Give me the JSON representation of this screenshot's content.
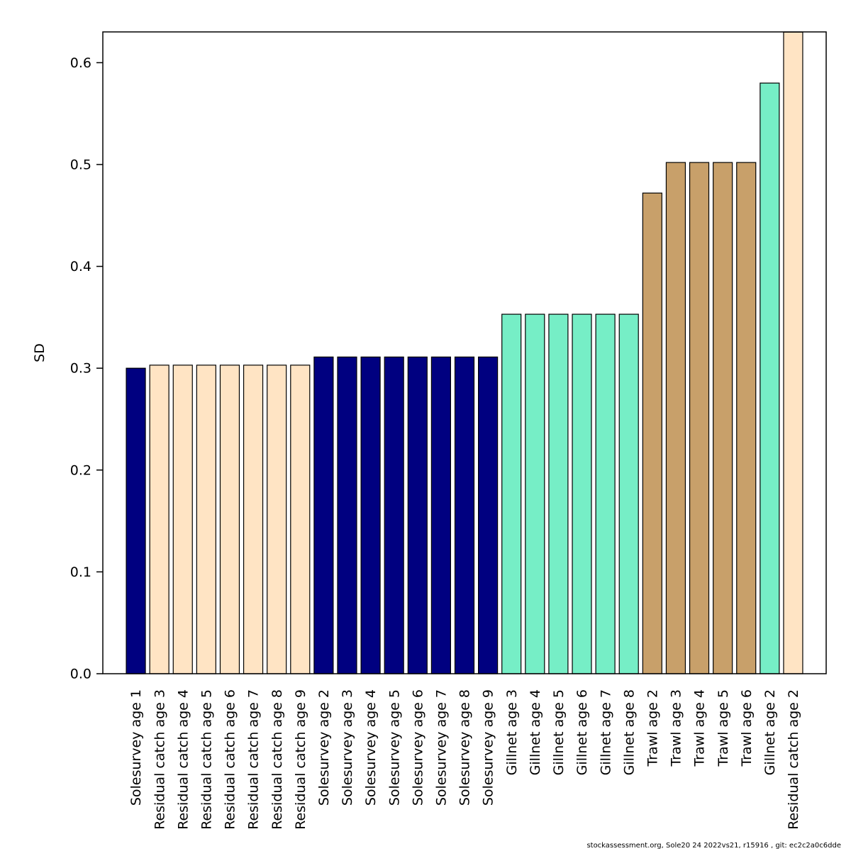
{
  "chart_data": {
    "type": "bar",
    "title": "",
    "xlabel": "",
    "ylabel": "SD",
    "ylim": [
      0,
      0.63
    ],
    "yticks": [
      0.0,
      0.1,
      0.2,
      0.3,
      0.4,
      0.5,
      0.6
    ],
    "ytick_labels": [
      "0.0",
      "0.1",
      "0.2",
      "0.3",
      "0.4",
      "0.5",
      "0.6"
    ],
    "grid": false,
    "legend": "none",
    "categories": [
      "Solesurvey age 1",
      "Residual catch age 3",
      "Residual catch age 4",
      "Residual catch age 5",
      "Residual catch age 6",
      "Residual catch age 7",
      "Residual catch age 8",
      "Residual catch age 9",
      "Solesurvey age 2",
      "Solesurvey age 3",
      "Solesurvey age 4",
      "Solesurvey age 5",
      "Solesurvey age 6",
      "Solesurvey age 7",
      "Solesurvey age 8",
      "Solesurvey age 9",
      "Gillnet age 3",
      "Gillnet age 4",
      "Gillnet age 5",
      "Gillnet age 6",
      "Gillnet age 7",
      "Gillnet age 8",
      "Trawl age 2",
      "Trawl age 3",
      "Trawl age 4",
      "Trawl age 5",
      "Trawl age 6",
      "Gillnet age 2",
      "Residual catch age 2"
    ],
    "values": [
      0.3,
      0.303,
      0.303,
      0.303,
      0.303,
      0.303,
      0.303,
      0.303,
      0.311,
      0.311,
      0.311,
      0.311,
      0.311,
      0.311,
      0.311,
      0.311,
      0.353,
      0.353,
      0.353,
      0.353,
      0.353,
      0.353,
      0.472,
      0.502,
      0.502,
      0.502,
      0.502,
      0.58,
      0.63
    ],
    "bar_colors": [
      "#000080",
      "#FFE4C4",
      "#FFE4C4",
      "#FFE4C4",
      "#FFE4C4",
      "#FFE4C4",
      "#FFE4C4",
      "#FFE4C4",
      "#000080",
      "#000080",
      "#000080",
      "#000080",
      "#000080",
      "#000080",
      "#000080",
      "#000080",
      "#76EEC6",
      "#76EEC6",
      "#76EEC6",
      "#76EEC6",
      "#76EEC6",
      "#76EEC6",
      "#C8A06A",
      "#C8A06A",
      "#C8A06A",
      "#C8A06A",
      "#C8A06A",
      "#76EEC6",
      "#FFE4C4"
    ],
    "fleet_color_key": {
      "Solesurvey": "#000080",
      "Residual catch": "#FFE4C4",
      "Gillnet": "#76EEC6",
      "Trawl": "#C8A06A"
    },
    "bar_stroke_color": "#000000",
    "axis_color": "#000000"
  },
  "footer": {
    "text": "stockassessment.org, Sole20 24  2022vs21, r15916 , git: ec2c2a0c6dde"
  }
}
